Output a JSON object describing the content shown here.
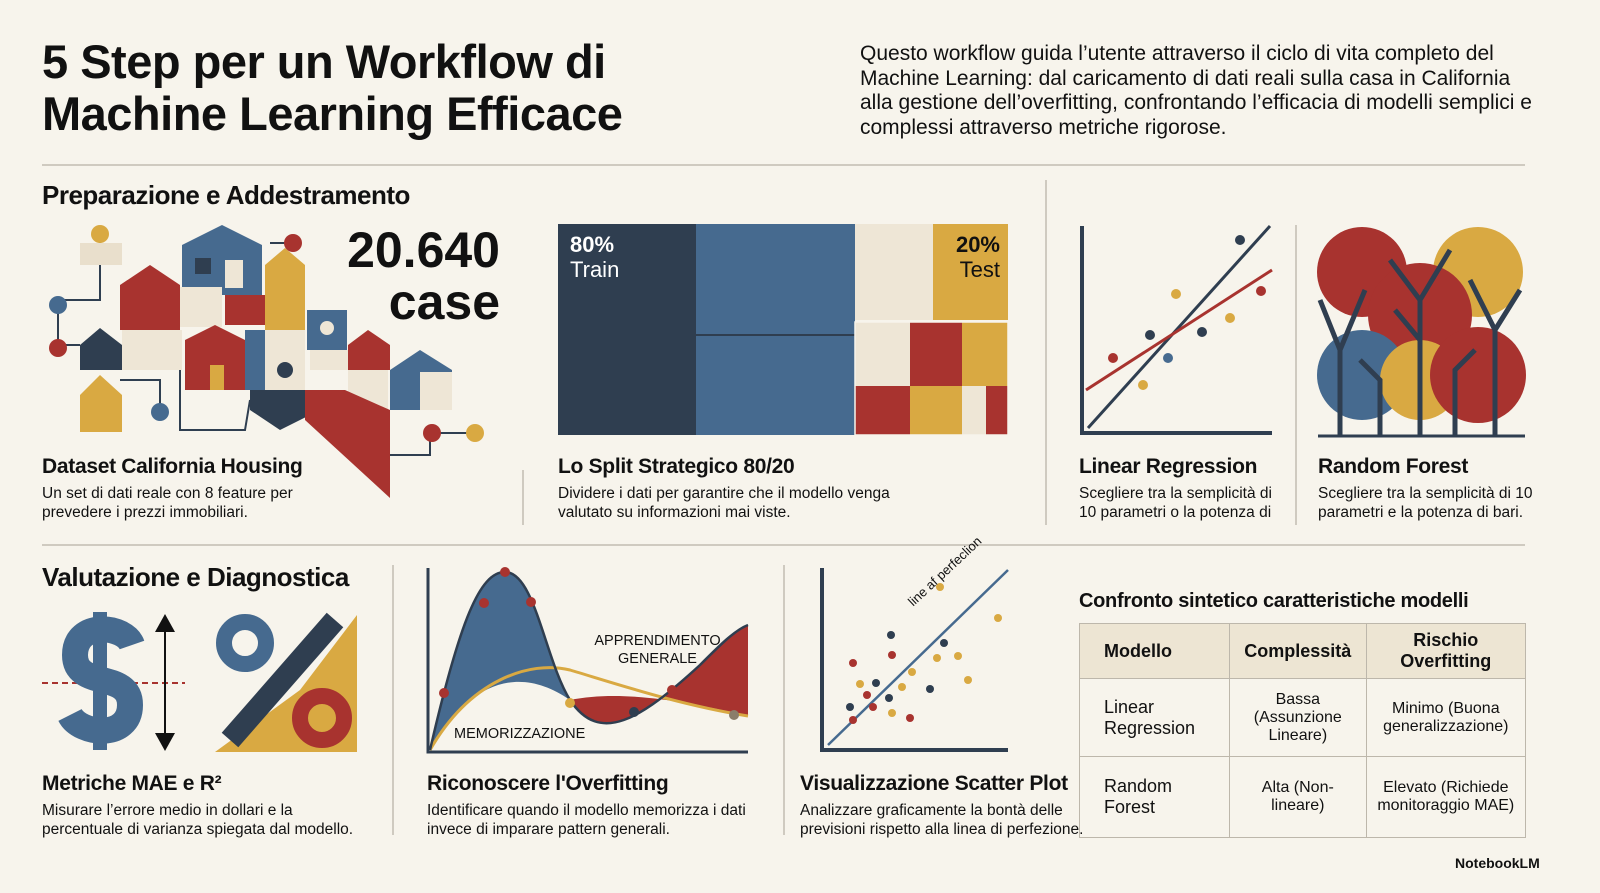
{
  "header": {
    "title": "5 Step per un Workflow di Machine Learning Efficace",
    "intro": "Questo workflow guida l’utente attraverso il ciclo di vita completo del Machine Learning: dal caricamento di dati reali sulla casa in California alla gestione dell’overfitting, confrontando l’efficacia di modelli semplici e complessi attraverso metriche rigorose."
  },
  "sections": [
    {
      "heading": "Preparazione e Addestramento",
      "cards": [
        {
          "title": "Dataset California Housing",
          "text": "Un set di dati reale con 8 feature per prevedere i prezzi immobiliari.",
          "stat": "20.640",
          "stat_unit": "case"
        },
        {
          "title": "Lo Split Strategico 80/20",
          "text": "Dividere i dati per garantire che il modello venga valutato su informazioni mai viste.",
          "train_pct": "80%",
          "train_label": "Train",
          "test_pct": "20%",
          "test_label": "Test"
        },
        {
          "title": "Linear Regression",
          "text": "Scegliere tra la semplicità di 10 parametri o la potenza di"
        },
        {
          "title": "Random Forest",
          "text": "Scegliere tra la semplicità di 10 parametri e la potenza di bari."
        }
      ]
    },
    {
      "heading": "Valutazione e Diagnostica",
      "cards": [
        {
          "title": "Metriche MAE e R²",
          "text": "Misurare l’errore medio in dollari e la percentuale di varianza spiegata dal modello."
        },
        {
          "title": "Riconoscere l'Overfitting",
          "text": "Identificare quando il modello memorizza i dati invece di imparare pattern generali.",
          "label_general": "APPRENDIMENTO GENERALE",
          "label_memo": "MEMORIZZAZIONE"
        },
        {
          "title": "Visualizzazione Scatter Plot",
          "text": "Analizzare graficamente la bontà delle previsioni rispetto alla linea di perfezione.",
          "line_label": "line af perfeclion"
        }
      ]
    }
  ],
  "table": {
    "title": "Confronto sintetico caratteristiche modelli",
    "headers": [
      "Modello",
      "Complessità",
      "Rischio Overfitting"
    ],
    "rows": [
      [
        "Linear Regression",
        "Bassa (Assunzione Lineare)",
        "Minimo (Buona generalizzazione)"
      ],
      [
        "Random Forest",
        "Alta (Non-lineare)",
        "Elevato (Richiede monitoraggio MAE)"
      ]
    ]
  },
  "footer": {
    "brand": "NotebookLM"
  }
}
